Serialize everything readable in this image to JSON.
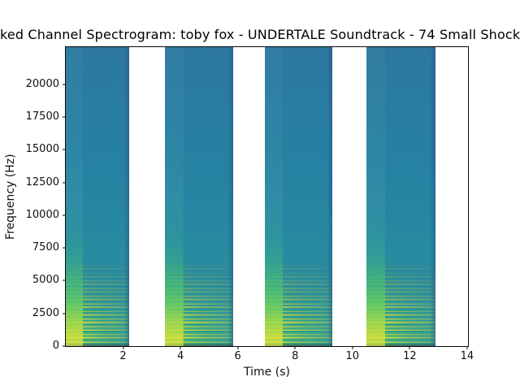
{
  "window": {
    "background": "#ffffff"
  },
  "chart_data": {
    "type": "heatmap",
    "subtype": "audio-spectrogram",
    "title": "ked Channel Spectrogram: toby fox - UNDERTALE Soundtrack - 74 Small Shock",
    "xlabel": "Time (s)",
    "ylabel": "Frequency (Hz)",
    "xlim": [
      0,
      14.03
    ],
    "ylim": [
      0,
      22840
    ],
    "xticks": [
      2,
      4,
      6,
      8,
      10,
      12,
      14
    ],
    "yticks": [
      0,
      2500,
      5000,
      7500,
      10000,
      12500,
      15000,
      17500,
      20000
    ],
    "grid": false,
    "legend": "none",
    "colormap": "viridis",
    "segments": [
      {
        "start": 0.0,
        "end": 2.2
      },
      {
        "start": 3.45,
        "end": 5.85
      },
      {
        "start": 6.95,
        "end": 9.3
      },
      {
        "start": 10.5,
        "end": 12.9
      }
    ],
    "segment_energy": {
      "attack_fraction_of_segment": 0.27,
      "harmonic_stripe_band_hz": [
        0,
        5500
      ],
      "broadband_fill_hz": [
        0,
        22840
      ]
    },
    "colors": {
      "background": "#ffffff",
      "body_teal": "#2588a2",
      "body_top_blue": "#2b78a0",
      "low_freq_green": "#3cb878",
      "harmonic_yellow": "#fde725",
      "attack_green": "#5ec962",
      "decay_edge_blue": "#274482",
      "spine_black": "#0a0a0a"
    }
  }
}
